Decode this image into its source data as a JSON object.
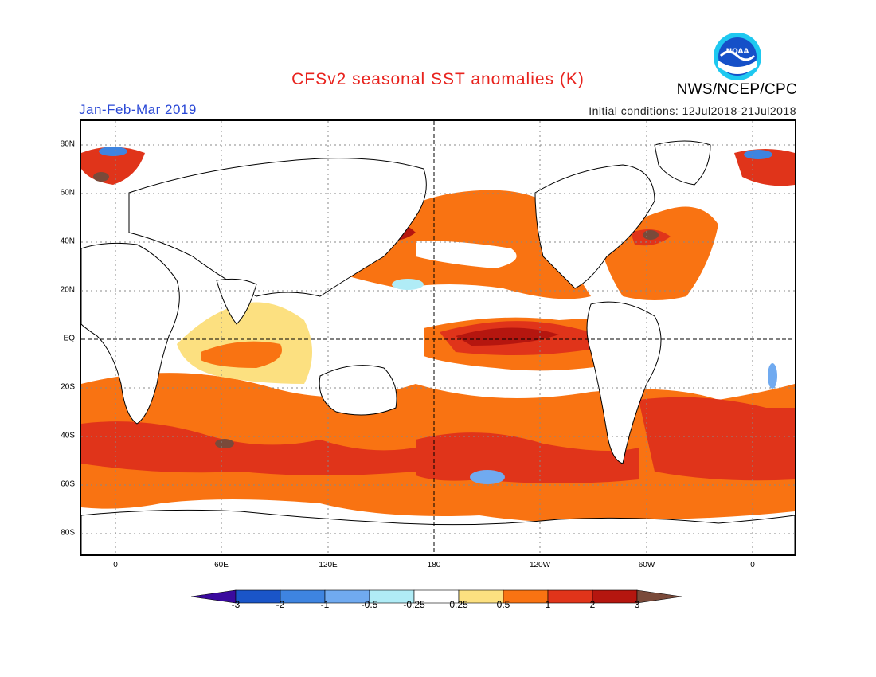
{
  "title": "CFSv2 seasonal SST anomalies (K)",
  "period": "Jan-Feb-Mar 2019",
  "initial_conditions": "Initial conditions: 12Jul2018-21Jul2018",
  "agency": "NWS/NCEP/CPC",
  "logo_text": "NOAA",
  "lat_labels": [
    "80N",
    "60N",
    "40N",
    "20N",
    "EQ",
    "20S",
    "40S",
    "60S",
    "80S"
  ],
  "lon_labels": [
    "0",
    "60E",
    "120E",
    "180",
    "120W",
    "60W",
    "0"
  ],
  "colorbar": {
    "ticks": [
      "-3",
      "-2",
      "-1",
      "-0.5",
      "-0.25",
      "0.25",
      "0.5",
      "1",
      "2",
      "3"
    ],
    "colors": [
      "#3a0a9e",
      "#1a55c8",
      "#3e84e0",
      "#70aaf0",
      "#b0ecf6",
      "#ffffff",
      "#fce080",
      "#f97312",
      "#e0341a",
      "#b5160f",
      "#7a4a3a"
    ]
  }
}
